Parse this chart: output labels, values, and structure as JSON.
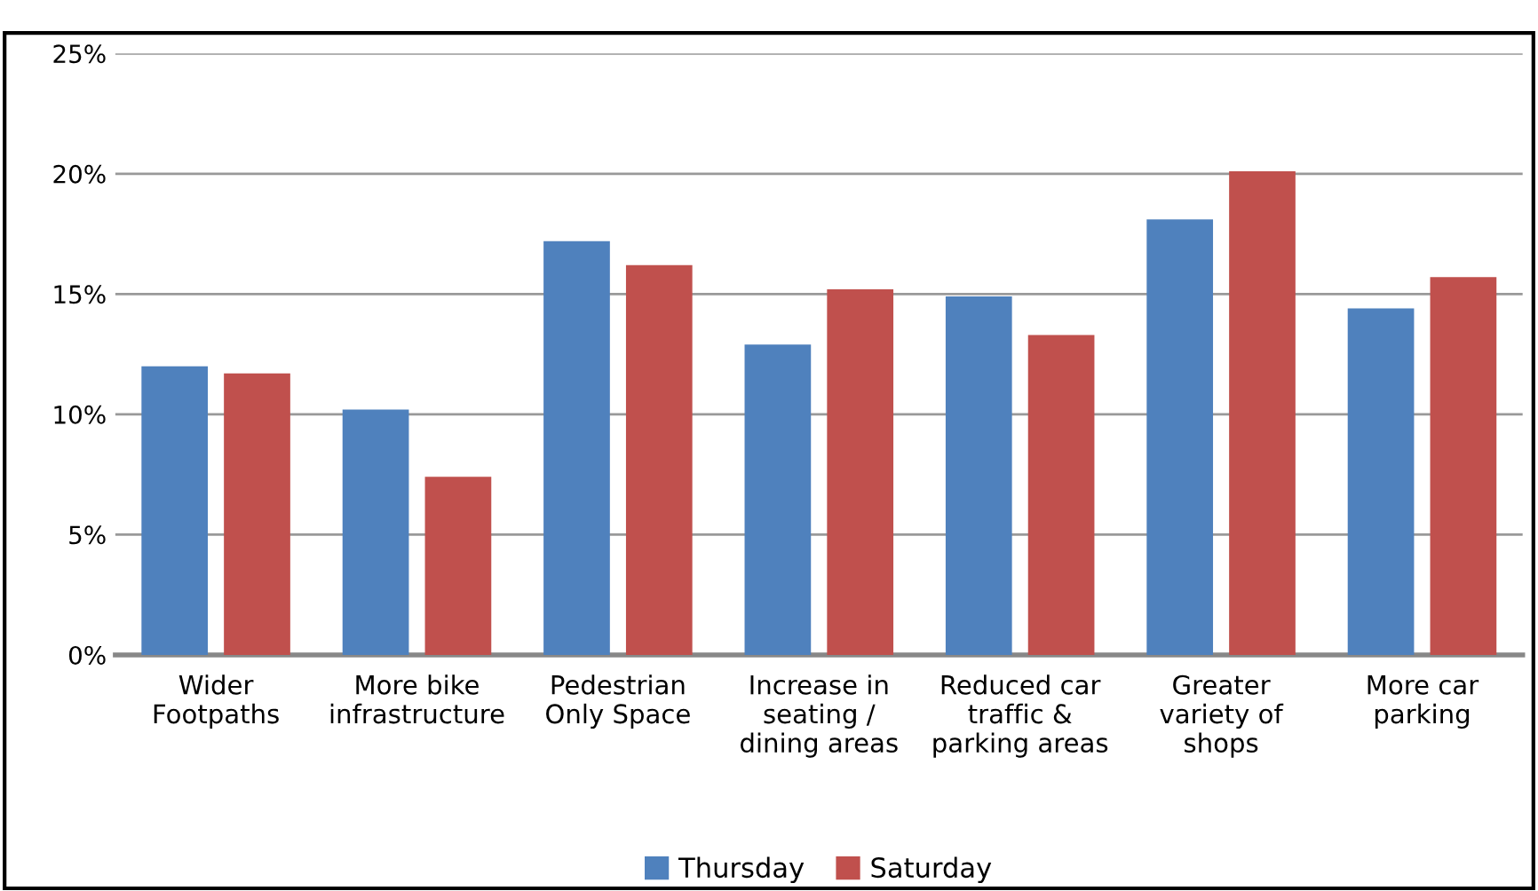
{
  "chart_data": {
    "type": "bar",
    "categories": [
      "Wider\nFootpaths",
      "More bike\ninfrastructure",
      "Pedestrian\nOnly Space",
      "Increase in\nseating /\ndining areas",
      "Reduced car\ntraffic &\nparking areas",
      "Greater\nvariety of\nshops",
      "More car\nparking"
    ],
    "series": [
      {
        "name": "Thursday",
        "color": "#4f81bd",
        "values": [
          12.0,
          10.2,
          17.2,
          12.9,
          14.9,
          18.1,
          14.4
        ]
      },
      {
        "name": "Saturday",
        "color": "#c0504d",
        "values": [
          11.7,
          7.4,
          16.2,
          15.2,
          13.3,
          20.1,
          15.7
        ]
      }
    ],
    "ylim": [
      0,
      25
    ],
    "yticks": [
      {
        "value": 0,
        "label": "0%"
      },
      {
        "value": 5,
        "label": "5%"
      },
      {
        "value": 10,
        "label": "10%"
      },
      {
        "value": 15,
        "label": "15%"
      },
      {
        "value": 20,
        "label": "20%"
      },
      {
        "value": 25,
        "label": "25%"
      }
    ],
    "grid": "y",
    "legend": "bottom"
  }
}
